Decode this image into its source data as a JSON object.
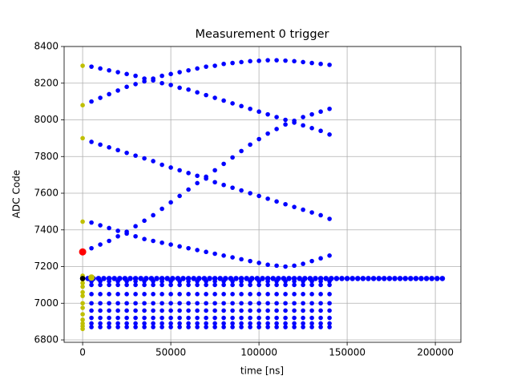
{
  "chart_data": {
    "type": "scatter",
    "title": "Measurement 0 trigger",
    "xlabel": "time [ns]",
    "ylabel": "ADC Code",
    "xlim": [
      -10500,
      214500
    ],
    "ylim": [
      6787,
      8400
    ],
    "xticks": [
      0,
      50000,
      100000,
      150000,
      200000
    ],
    "yticks": [
      6800,
      7000,
      7200,
      7400,
      7600,
      7800,
      8000,
      8200,
      8400
    ],
    "grid": true,
    "x": [
      5000,
      10000,
      15000,
      20000,
      25000,
      30000,
      35000,
      40000,
      45000,
      50000,
      55000,
      60000,
      65000,
      70000,
      75000,
      80000,
      85000,
      90000,
      95000,
      100000,
      105000,
      110000,
      115000,
      120000,
      125000,
      130000,
      135000,
      140000
    ],
    "series": [
      {
        "color": "#0000ff",
        "size": 2.8,
        "values": [
          8290,
          8280,
          8270,
          8260,
          8250,
          8240,
          8225,
          8215,
          8200,
          8190,
          8175,
          8165,
          8150,
          8135,
          8120,
          8105,
          8090,
          8075,
          8060,
          8045,
          8030,
          8015,
          8000,
          7985,
          7970,
          7955,
          7940,
          7920
        ]
      },
      {
        "color": "#0000ff",
        "size": 2.8,
        "values": [
          8100,
          8120,
          8140,
          8160,
          8180,
          8195,
          8210,
          8225,
          8240,
          8250,
          8260,
          8270,
          8280,
          8290,
          8295,
          8305,
          8310,
          8315,
          8320,
          8322,
          8325,
          8325,
          8323,
          8320,
          8315,
          8310,
          8305,
          8300
        ]
      },
      {
        "color": "#0000ff",
        "size": 2.8,
        "values": [
          7880,
          7865,
          7850,
          7835,
          7820,
          7805,
          7790,
          7775,
          7755,
          7740,
          7725,
          7710,
          7695,
          7680,
          7660,
          7645,
          7630,
          7615,
          7600,
          7585,
          7570,
          7555,
          7540,
          7525,
          7510,
          7495,
          7480,
          7460
        ]
      },
      {
        "color": "#0000ff",
        "size": 2.8,
        "values": [
          7300,
          7320,
          7340,
          7365,
          7390,
          7420,
          7450,
          7480,
          7515,
          7550,
          7585,
          7620,
          7655,
          7690,
          7725,
          7760,
          7795,
          7830,
          7865,
          7895,
          7925,
          7950,
          7975,
          7995,
          8015,
          8030,
          8045,
          8060
        ]
      },
      {
        "color": "#0000ff",
        "size": 2.8,
        "values": [
          7440,
          7425,
          7410,
          7395,
          7380,
          7365,
          7350,
          7340,
          7330,
          7320,
          7310,
          7300,
          7290,
          7280,
          7270,
          7260,
          7250,
          7240,
          7230,
          7220,
          7210,
          7205,
          7200,
          7205,
          7215,
          7230,
          7245,
          7260
        ]
      },
      {
        "color": "#0000ff",
        "size": 2.8,
        "values": [
          7120,
          7120,
          7120,
          7120,
          7120,
          7120,
          7120,
          7120,
          7120,
          7120,
          7120,
          7120,
          7120,
          7120,
          7120,
          7120,
          7120,
          7120,
          7120,
          7120,
          7120,
          7120,
          7120,
          7120,
          7120,
          7120,
          7120,
          7120
        ]
      },
      {
        "color": "#0000ff",
        "size": 2.8,
        "values": [
          7100,
          7100,
          7100,
          7100,
          7100,
          7100,
          7100,
          7100,
          7100,
          7100,
          7100,
          7100,
          7100,
          7100,
          7100,
          7100,
          7100,
          7100,
          7100,
          7100,
          7100,
          7100,
          7100,
          7100,
          7100,
          7100,
          7100,
          7100
        ]
      },
      {
        "color": "#0000ff",
        "size": 2.8,
        "values": [
          7050,
          7050,
          7050,
          7050,
          7050,
          7050,
          7050,
          7050,
          7050,
          7050,
          7050,
          7050,
          7050,
          7050,
          7050,
          7050,
          7050,
          7050,
          7050,
          7050,
          7050,
          7050,
          7050,
          7050,
          7050,
          7050,
          7050,
          7050
        ]
      },
      {
        "color": "#0000ff",
        "size": 2.8,
        "values": [
          7000,
          7000,
          7000,
          7000,
          7000,
          7000,
          7000,
          7000,
          7000,
          7000,
          7000,
          7000,
          7000,
          7000,
          7000,
          7000,
          7000,
          7000,
          7000,
          7000,
          7000,
          7000,
          7000,
          7000,
          7000,
          7000,
          7000,
          7000
        ]
      },
      {
        "color": "#0000ff",
        "size": 2.8,
        "values": [
          6960,
          6960,
          6960,
          6960,
          6960,
          6960,
          6960,
          6960,
          6960,
          6960,
          6960,
          6960,
          6960,
          6960,
          6960,
          6960,
          6960,
          6960,
          6960,
          6960,
          6960,
          6960,
          6960,
          6960,
          6960,
          6960,
          6960,
          6960
        ]
      },
      {
        "color": "#0000ff",
        "size": 2.8,
        "values": [
          6920,
          6920,
          6920,
          6920,
          6920,
          6920,
          6920,
          6920,
          6920,
          6920,
          6920,
          6920,
          6920,
          6920,
          6920,
          6920,
          6920,
          6920,
          6920,
          6920,
          6920,
          6920,
          6920,
          6920,
          6920,
          6920,
          6920,
          6920
        ]
      },
      {
        "color": "#0000ff",
        "size": 2.8,
        "values": [
          6890,
          6890,
          6890,
          6890,
          6890,
          6890,
          6890,
          6890,
          6890,
          6890,
          6890,
          6890,
          6890,
          6890,
          6890,
          6890,
          6890,
          6890,
          6890,
          6890,
          6890,
          6890,
          6890,
          6890,
          6890,
          6890,
          6890,
          6890
        ]
      },
      {
        "color": "#0000ff",
        "size": 2.8,
        "values": [
          6870,
          6870,
          6870,
          6870,
          6870,
          6870,
          6870,
          6870,
          6870,
          6870,
          6870,
          6870,
          6870,
          6870,
          6870,
          6870,
          6870,
          6870,
          6870,
          6870,
          6870,
          6870,
          6870,
          6870,
          6870,
          6870,
          6870,
          6870
        ]
      },
      {
        "color": "#0000ff",
        "size": 3.3,
        "x": [
          0,
          3000,
          6000,
          9000,
          12000,
          15000,
          18000,
          21000,
          24000,
          27000,
          30000,
          33000,
          36000,
          39000,
          42000,
          45000,
          48000,
          51000,
          54000,
          57000,
          60000,
          63000,
          66000,
          69000,
          72000,
          75000,
          78000,
          81000,
          84000,
          87000,
          90000,
          93000,
          96000,
          99000,
          102000,
          105000,
          108000,
          111000,
          114000,
          117000,
          120000,
          123000,
          126000,
          129000,
          132000,
          135000,
          138000,
          141000,
          144000,
          147000,
          150000,
          153000,
          156000,
          159000,
          162000,
          165000,
          168000,
          171000,
          174000,
          177000,
          180000,
          183000,
          186000,
          189000,
          192000,
          195000,
          198000,
          201000,
          204000
        ],
        "values": [
          7135,
          7135,
          7135,
          7135,
          7135,
          7135,
          7135,
          7135,
          7135,
          7135,
          7135,
          7135,
          7135,
          7135,
          7135,
          7135,
          7135,
          7135,
          7135,
          7135,
          7135,
          7135,
          7135,
          7135,
          7135,
          7135,
          7135,
          7135,
          7135,
          7135,
          7135,
          7135,
          7135,
          7135,
          7135,
          7135,
          7135,
          7135,
          7135,
          7135,
          7135,
          7135,
          7135,
          7135,
          7135,
          7135,
          7135,
          7135,
          7135,
          7135,
          7135,
          7135,
          7135,
          7135,
          7135,
          7135,
          7135,
          7135,
          7135,
          7135,
          7135,
          7135,
          7135,
          7135,
          7135,
          7135,
          7135,
          7135,
          7135
        ]
      },
      {
        "color": "#bfbf00",
        "size": 2.8,
        "x": [
          0,
          0,
          0,
          0,
          0,
          0,
          0,
          0,
          0,
          0,
          0,
          0,
          0,
          0,
          0,
          0,
          0
        ],
        "values": [
          8295,
          8080,
          7900,
          7445,
          7150,
          7130,
          7110,
          7090,
          7060,
          7040,
          7000,
          6975,
          6940,
          6910,
          6890,
          6875,
          6860
        ]
      },
      {
        "color": "#bfbf00",
        "size": 4,
        "x": [
          5000
        ],
        "values": [
          7140
        ]
      },
      {
        "color": "#000000",
        "size": 3.3,
        "x": [
          0
        ],
        "values": [
          7135
        ]
      },
      {
        "color": "#ff0000",
        "size": 4.5,
        "x": [
          0
        ],
        "values": [
          7280
        ]
      }
    ]
  }
}
